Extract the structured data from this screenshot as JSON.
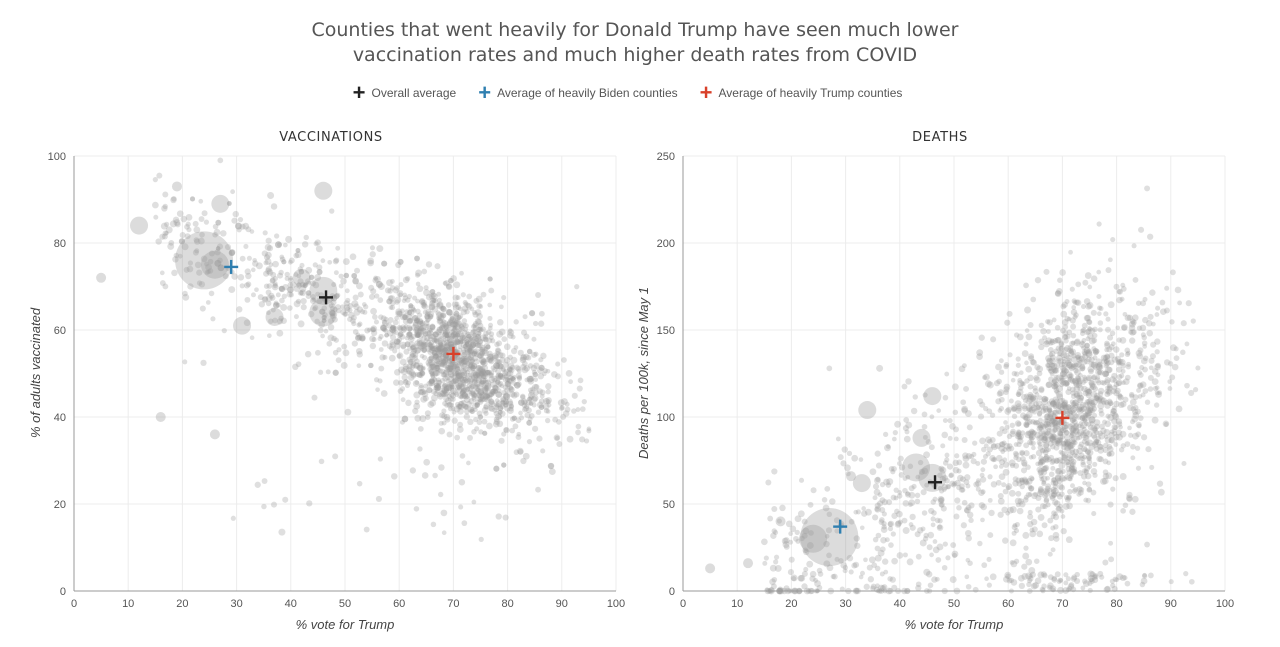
{
  "title_line1": "Counties that went heavily for Donald Trump have seen much lower",
  "title_line2": "vaccination rates and much higher death rates from COVID",
  "legend": [
    {
      "label": "Overall average",
      "color": "#222222"
    },
    {
      "label": "Average of heavily Biden counties",
      "color": "#2f7fb0"
    },
    {
      "label": "Average of heavily Trump counties",
      "color": "#d8402a"
    }
  ],
  "chart_data": [
    {
      "type": "scatter",
      "title": "VACCINATIONS",
      "xlabel": "% vote for Trump",
      "ylabel": "% of adults vaccinated",
      "xlim": [
        0,
        100
      ],
      "ylim": [
        0,
        100
      ],
      "xticks": [
        0,
        10,
        20,
        30,
        40,
        50,
        60,
        70,
        80,
        90,
        100
      ],
      "yticks": [
        0,
        20,
        40,
        60,
        80,
        100
      ],
      "grid": true,
      "point_color": "#9a9a9a",
      "large_points": [
        {
          "x": 24,
          "y": 76,
          "size": "huge"
        },
        {
          "x": 26,
          "y": 75,
          "size": "large"
        },
        {
          "x": 46,
          "y": 69,
          "size": "large"
        },
        {
          "x": 46,
          "y": 64,
          "size": "large"
        },
        {
          "x": 37,
          "y": 63,
          "size": "medium"
        },
        {
          "x": 46,
          "y": 92,
          "size": "medium"
        },
        {
          "x": 27,
          "y": 89,
          "size": "medium"
        },
        {
          "x": 12,
          "y": 84,
          "size": "medium"
        },
        {
          "x": 42,
          "y": 72,
          "size": "medium"
        },
        {
          "x": 31,
          "y": 61,
          "size": "medium"
        },
        {
          "x": 26,
          "y": 36,
          "size": "small"
        },
        {
          "x": 19,
          "y": 93,
          "size": "small"
        },
        {
          "x": 5,
          "y": 72,
          "size": "small"
        },
        {
          "x": 16,
          "y": 40,
          "size": "small"
        }
      ],
      "averages": [
        {
          "name": "Overall average",
          "x": 46.5,
          "y": 67.5,
          "color": "#222222"
        },
        {
          "name": "Average of heavily Biden counties",
          "x": 29,
          "y": 74.5,
          "color": "#2f7fb0"
        },
        {
          "name": "Average of heavily Trump counties",
          "x": 70,
          "y": 54.5,
          "color": "#d8402a"
        }
      ]
    },
    {
      "type": "scatter",
      "title": "DEATHS",
      "xlabel": "% vote for Trump",
      "ylabel": "Deaths per 100k, since May 1",
      "xlim": [
        0,
        100
      ],
      "ylim": [
        0,
        250
      ],
      "xticks": [
        0,
        10,
        20,
        30,
        40,
        50,
        60,
        70,
        80,
        90,
        100
      ],
      "yticks": [
        0,
        50,
        100,
        150,
        200,
        250
      ],
      "grid": true,
      "point_color": "#9a9a9a",
      "large_points": [
        {
          "x": 27,
          "y": 31,
          "size": "huge"
        },
        {
          "x": 24,
          "y": 30,
          "size": "large"
        },
        {
          "x": 43,
          "y": 71,
          "size": "large"
        },
        {
          "x": 46,
          "y": 65,
          "size": "large"
        },
        {
          "x": 46,
          "y": 112,
          "size": "medium"
        },
        {
          "x": 34,
          "y": 104,
          "size": "medium"
        },
        {
          "x": 33,
          "y": 62,
          "size": "medium"
        },
        {
          "x": 44,
          "y": 88,
          "size": "medium"
        },
        {
          "x": 12,
          "y": 16,
          "size": "small"
        },
        {
          "x": 18,
          "y": 40,
          "size": "small"
        },
        {
          "x": 5,
          "y": 13,
          "size": "small"
        },
        {
          "x": 31,
          "y": 66,
          "size": "small"
        }
      ],
      "averages": [
        {
          "name": "Overall average",
          "x": 46.5,
          "y": 62.5,
          "color": "#222222"
        },
        {
          "name": "Average of heavily Biden counties",
          "x": 29,
          "y": 37,
          "color": "#2f7fb0"
        },
        {
          "name": "Average of heavily Trump counties",
          "x": 70,
          "y": 99.5,
          "color": "#d8402a"
        }
      ]
    }
  ]
}
